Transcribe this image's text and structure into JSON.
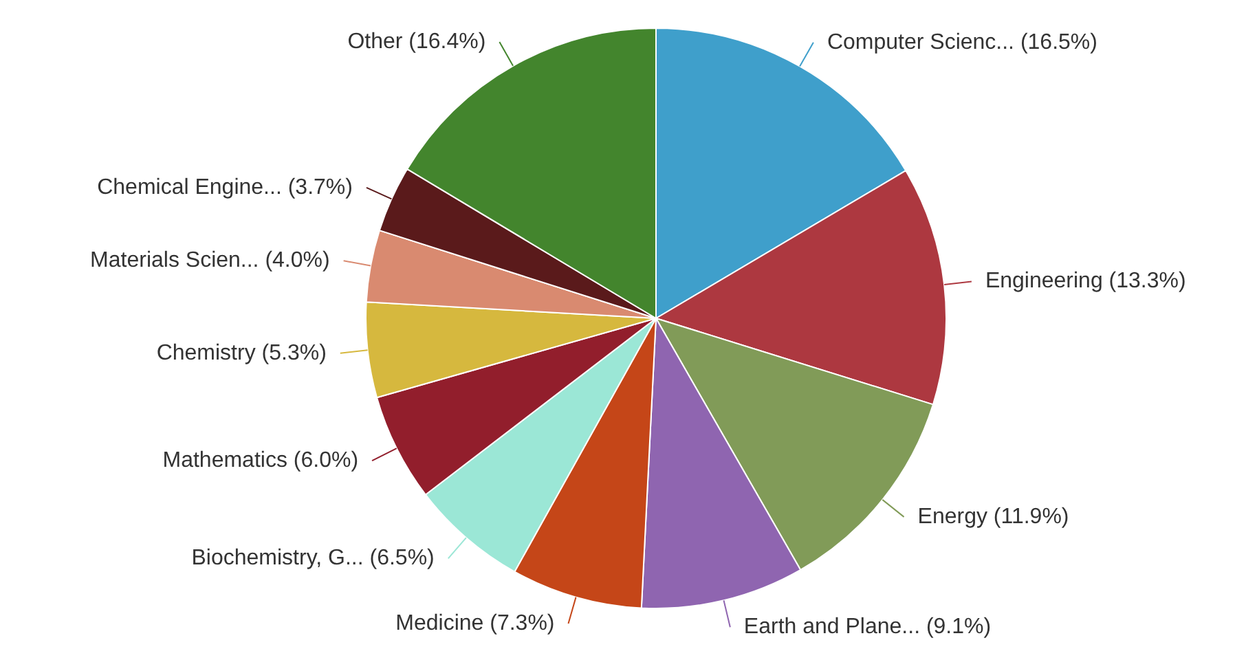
{
  "chart_data": {
    "type": "pie",
    "categories": [
      "Computer Scienc...",
      "Engineering",
      "Energy",
      "Earth and Plane...",
      "Medicine",
      "Biochemistry, G...",
      "Mathematics",
      "Chemistry",
      "Materials Scien...",
      "Chemical Engine...",
      "Other"
    ],
    "values": [
      16.5,
      13.3,
      11.9,
      9.1,
      7.3,
      6.5,
      6.0,
      5.3,
      4.0,
      3.7,
      16.4
    ],
    "value_labels": [
      "(16.5%)",
      "(13.3%)",
      "(11.9%)",
      "(9.1%)",
      "(7.3%)",
      "(6.5%)",
      "(6.0%)",
      "(5.3%)",
      "(4.0%)",
      "(3.7%)",
      "(16.4%)"
    ],
    "colors": [
      "#3f9fcb",
      "#ad3840",
      "#819b58",
      "#8f65b0",
      "#c54618",
      "#9be7d6",
      "#921e2c",
      "#d6b83e",
      "#d98a70",
      "#5a1a1b",
      "#43852d"
    ],
    "legend": false
  }
}
